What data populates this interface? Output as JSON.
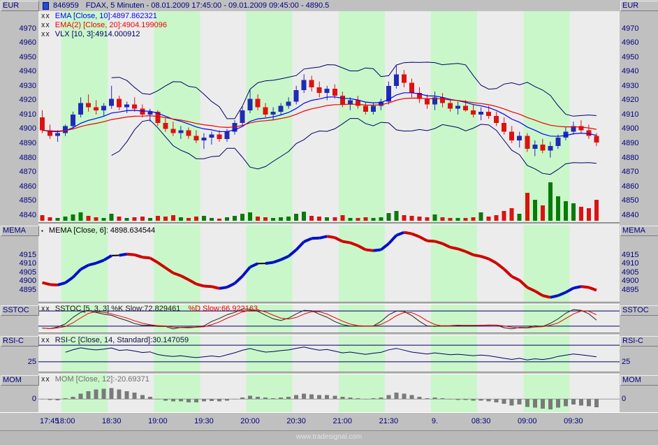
{
  "header": {
    "instrument_label": "EUR",
    "symbol_id": "846959",
    "title_rest": "FDAX, 5 Minuten - 08.01.2009 17:45:00 - 09.01.2009 09:45:00 - 4890.5"
  },
  "legends": {
    "ema": {
      "icon": "XX",
      "text": "EMA [Close, 10]:4897.862321",
      "color": "#0000ff"
    },
    "ema2": {
      "icon": "XX",
      "text": "EMA(2) [Close, 20]:4904.199096",
      "color": "#ee0000"
    },
    "vlx": {
      "icon": "XX",
      "text": "VLX [10, 3]:4914.000912",
      "color": "#000066"
    },
    "mema": {
      "icon": "▪",
      "text": "MEMA [Close, 6]: 4898.634544",
      "color": "#000000"
    },
    "sstoc": {
      "icon": "XX",
      "text_k": "SSTOC [5, 3, 3] %K Slow:72.829461",
      "text_d": "%D Slow:66.922163",
      "color_k": "#1a1a1a",
      "color_d": "#ee0000"
    },
    "rsi": {
      "icon": "XX",
      "text": "RSI-C [Close, 14, Standard]:30.147059",
      "color": "#10103a"
    },
    "mom": {
      "icon": "XX",
      "text": "MOM [Close, 12]:-20.69371",
      "color": "#707070"
    }
  },
  "panes": {
    "price": {
      "label": "EUR",
      "scale": [
        4970,
        4960,
        4950,
        4940,
        4930,
        4920,
        4910,
        4900,
        4890,
        4880,
        4870,
        4860,
        4850,
        4840
      ]
    },
    "mema": {
      "label": "MEMA",
      "scale": [
        4915,
        4910,
        4905,
        4900,
        4895
      ]
    },
    "sstoc": {
      "label": "SSTOC",
      "scale": []
    },
    "rsi": {
      "label": "RSI-C",
      "scale": [
        25
      ]
    },
    "mom": {
      "label": "MOM",
      "scale": [
        0
      ]
    }
  },
  "time_axis": {
    "labels": [
      {
        "i": 0,
        "t": "17:45"
      },
      {
        "i": 3,
        "t": "18:00"
      },
      {
        "i": 9,
        "t": "18:30"
      },
      {
        "i": 15,
        "t": "19:00"
      },
      {
        "i": 21,
        "t": "19:30"
      },
      {
        "i": 27,
        "t": "20:00"
      },
      {
        "i": 33,
        "t": "20:30"
      },
      {
        "i": 39,
        "t": "21:00"
      },
      {
        "i": 45,
        "t": "21:30"
      },
      {
        "i": 51,
        "t": "9."
      },
      {
        "i": 57,
        "t": "08:30"
      },
      {
        "i": 63,
        "t": "09:00"
      },
      {
        "i": 69,
        "t": "09:30"
      }
    ]
  },
  "footer": {
    "watermark": "www.tradesignal.com"
  },
  "colors": {
    "up": "#1e2cb4",
    "down": "#dd1111",
    "ema": "#0000ff",
    "ema2": "#ee0000",
    "vlx": "#000066",
    "mema_up": "#0010c8",
    "mema_down": "#d00000",
    "mema_flat": "#000000",
    "sstoc_k": "#222222",
    "sstoc_d": "#ee0000",
    "rsi": "#000066",
    "mom_bar": "#7a7a7a",
    "ref_line": "#000066",
    "stripe_green": "#c9f7c9",
    "pane_bg": "#ececec",
    "vol_up": "#0a7a0a",
    "vol_down": "#dd1111",
    "legend_icon": "#444444",
    "text": "#000080"
  },
  "chart_data": {
    "type": "candlestick",
    "symbol_id": "846959",
    "symbol": "FDAX",
    "interval": "5 Minuten",
    "range": "08.01.2009 17:45:00 - 09.01.2009 09:45:00",
    "last_price": 4890.5,
    "slots": 75.5,
    "session_break_index": 51,
    "price_axis": {
      "min": 4835,
      "max": 4982
    },
    "stripes": {
      "green_blocks": [
        [
          3,
          9
        ],
        [
          15,
          21
        ],
        [
          27,
          33
        ],
        [
          39,
          45
        ],
        [
          51,
          57
        ],
        [
          63,
          69
        ]
      ]
    },
    "candles": [
      [
        4908,
        4913,
        4897,
        4899,
        8
      ],
      [
        4899,
        4903,
        4893,
        4895,
        5
      ],
      [
        4895,
        4899,
        4891,
        4897,
        4
      ],
      [
        4897,
        4903,
        4895,
        4902,
        6
      ],
      [
        4902,
        4912,
        4900,
        4910,
        9
      ],
      [
        4910,
        4922,
        4908,
        4918,
        12
      ],
      [
        4918,
        4924,
        4912,
        4915,
        7
      ],
      [
        4915,
        4920,
        4910,
        4913,
        5
      ],
      [
        4913,
        4918,
        4909,
        4916,
        4
      ],
      [
        4916,
        4930,
        4914,
        4921,
        10
      ],
      [
        4921,
        4923,
        4913,
        4915,
        6
      ],
      [
        4915,
        4919,
        4911,
        4917,
        4
      ],
      [
        4917,
        4922,
        4912,
        4914,
        5
      ],
      [
        4914,
        4917,
        4908,
        4910,
        6
      ],
      [
        4910,
        4914,
        4905,
        4912,
        4
      ],
      [
        4912,
        4913,
        4902,
        4904,
        7
      ],
      [
        4904,
        4908,
        4898,
        4900,
        6
      ],
      [
        4900,
        4905,
        4895,
        4897,
        8
      ],
      [
        4897,
        4902,
        4893,
        4899,
        5
      ],
      [
        4899,
        4901,
        4893,
        4895,
        4
      ],
      [
        4895,
        4899,
        4890,
        4892,
        6
      ],
      [
        4892,
        4897,
        4886,
        4894,
        7
      ],
      [
        4894,
        4898,
        4889,
        4896,
        4
      ],
      [
        4896,
        4899,
        4891,
        4893,
        3
      ],
      [
        4893,
        4900,
        4891,
        4898,
        5
      ],
      [
        4898,
        4906,
        4896,
        4904,
        7
      ],
      [
        4904,
        4916,
        4902,
        4913,
        10
      ],
      [
        4913,
        4928,
        4911,
        4921,
        12
      ],
      [
        4921,
        4924,
        4913,
        4915,
        6
      ],
      [
        4915,
        4918,
        4908,
        4910,
        5
      ],
      [
        4910,
        4915,
        4906,
        4912,
        4
      ],
      [
        4912,
        4918,
        4910,
        4916,
        5
      ],
      [
        4916,
        4922,
        4914,
        4919,
        6
      ],
      [
        4919,
        4930,
        4917,
        4927,
        10
      ],
      [
        4927,
        4938,
        4925,
        4934,
        13
      ],
      [
        4934,
        4937,
        4926,
        4929,
        7
      ],
      [
        4929,
        4933,
        4922,
        4925,
        6
      ],
      [
        4925,
        4930,
        4920,
        4928,
        5
      ],
      [
        4928,
        4931,
        4921,
        4923,
        5
      ],
      [
        4923,
        4926,
        4915,
        4917,
        8
      ],
      [
        4917,
        4922,
        4913,
        4920,
        4
      ],
      [
        4920,
        4923,
        4914,
        4916,
        4
      ],
      [
        4916,
        4919,
        4910,
        4912,
        5
      ],
      [
        4912,
        4918,
        4910,
        4916,
        4
      ],
      [
        4916,
        4921,
        4913,
        4919,
        5
      ],
      [
        4919,
        4933,
        4917,
        4930,
        11
      ],
      [
        4930,
        4944,
        4928,
        4938,
        14
      ],
      [
        4938,
        4941,
        4929,
        4932,
        8
      ],
      [
        4932,
        4935,
        4922,
        4925,
        7
      ],
      [
        4925,
        4929,
        4918,
        4921,
        6
      ],
      [
        4921,
        4924,
        4914,
        4917,
        5
      ],
      [
        4917,
        4926,
        4913,
        4922,
        9
      ],
      [
        4922,
        4925,
        4915,
        4918,
        5
      ],
      [
        4918,
        4921,
        4912,
        4914,
        4
      ],
      [
        4914,
        4919,
        4910,
        4916,
        4
      ],
      [
        4916,
        4920,
        4912,
        4913,
        4
      ],
      [
        4913,
        4917,
        4908,
        4910,
        5
      ],
      [
        4910,
        4915,
        4906,
        4912,
        12
      ],
      [
        4912,
        4916,
        4907,
        4909,
        6
      ],
      [
        4909,
        4912,
        4902,
        4904,
        8
      ],
      [
        4904,
        4908,
        4896,
        4898,
        14
      ],
      [
        4898,
        4902,
        4890,
        4892,
        18
      ],
      [
        4892,
        4898,
        4887,
        4895,
        10
      ],
      [
        4895,
        4897,
        4884,
        4886,
        40
      ],
      [
        4886,
        4892,
        4881,
        4889,
        30
      ],
      [
        4889,
        4893,
        4883,
        4885,
        22
      ],
      [
        4885,
        4891,
        4880,
        4888,
        55
      ],
      [
        4888,
        4896,
        4886,
        4894,
        35
      ],
      [
        4894,
        4901,
        4892,
        4898,
        28
      ],
      [
        4898,
        4905,
        4896,
        4902,
        25
      ],
      [
        4902,
        4906,
        4897,
        4899,
        20
      ],
      [
        4899,
        4903,
        4893,
        4895,
        18
      ],
      [
        4895,
        4897,
        4888,
        4890.5,
        30
      ]
    ],
    "mom": [
      0,
      -2,
      -3,
      2,
      6,
      14,
      20,
      24,
      26,
      28,
      24,
      20,
      16,
      10,
      6,
      0,
      -4,
      -6,
      -6,
      -8,
      -8,
      -6,
      -5,
      -6,
      -4,
      0,
      4,
      8,
      6,
      4,
      2,
      4,
      6,
      10,
      14,
      12,
      10,
      10,
      8,
      6,
      4,
      2,
      0,
      2,
      4,
      10,
      16,
      14,
      10,
      6,
      2,
      4,
      2,
      0,
      -2,
      -2,
      -4,
      -4,
      -6,
      -8,
      -12,
      -16,
      -14,
      -20,
      -22,
      -24,
      -26,
      -22,
      -18,
      -14,
      -16,
      -18,
      -20.69
    ],
    "indicators": {
      "ema": {
        "period": 10,
        "source": "Close",
        "last": 4897.862321
      },
      "ema2": {
        "period": 20,
        "source": "Close",
        "last": 4904.199096
      },
      "vlx": {
        "params": [
          10,
          3
        ],
        "last": 4914.000912
      },
      "mema": {
        "period": 6,
        "source": "Close",
        "last": 4898.634544
      },
      "sstoc": {
        "params": [
          5,
          3,
          3
        ],
        "k_slow": 72.829461,
        "d_slow": 66.922163,
        "ref_lines": [
          80,
          20
        ]
      },
      "rsi": {
        "period": 14,
        "mode": "Standard",
        "source": "Close",
        "last": 30.147059,
        "ref_lines": [
          75,
          25
        ]
      },
      "mom": {
        "period": 12,
        "source": "Close",
        "last": -20.69371
      }
    }
  }
}
